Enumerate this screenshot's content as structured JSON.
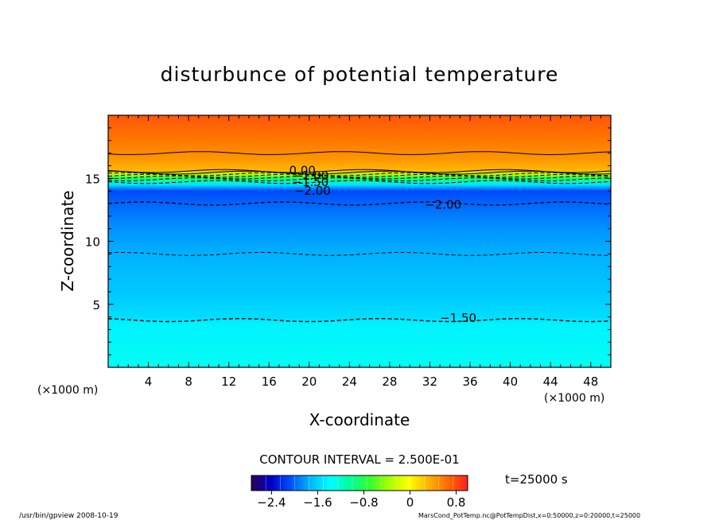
{
  "chart_data": {
    "type": "contour",
    "title": "disturbunce of potential temperature",
    "xlabel": "X-coordinate",
    "ylabel": "Z-coordinate",
    "x_unit": "(×1000 m)",
    "y_unit": "(×1000 m)",
    "xlim": [
      0,
      50
    ],
    "ylim": [
      0,
      20
    ],
    "x_ticks": [
      4,
      8,
      12,
      16,
      20,
      24,
      28,
      32,
      36,
      40,
      44,
      48
    ],
    "y_ticks": [
      5,
      10,
      15
    ],
    "contour_interval_label": "CONTOUR INTERVAL = 2.500E-01",
    "time_label": "t=25000 s",
    "colorbar": {
      "range": [
        -2.75,
        1.0
      ],
      "tick_values": [
        -2.4,
        -1.6,
        -0.8,
        0,
        0.8
      ],
      "tick_labels": [
        "−2.4",
        "−1.6",
        "−0.8",
        "0",
        "0.8"
      ]
    },
    "contour_labels": [
      {
        "text": "0.00",
        "x": 18,
        "z": 15.6
      },
      {
        "text": "−1.00",
        "x": 18.3,
        "z": 15.2
      },
      {
        "text": "−1.50",
        "x": 18.3,
        "z": 14.7
      },
      {
        "text": "−2.00",
        "x": 18.5,
        "z": 14.0
      },
      {
        "text": "−2.00",
        "x": 31.5,
        "z": 12.9
      },
      {
        "text": "−1.50",
        "x": 33,
        "z": 3.9
      }
    ],
    "field_profile": [
      {
        "z": 0,
        "value": -1.35
      },
      {
        "z": 3.5,
        "value": -1.45
      },
      {
        "z": 4.0,
        "value": -1.55
      },
      {
        "z": 6.0,
        "value": -1.65
      },
      {
        "z": 9.0,
        "value": -1.75
      },
      {
        "z": 11.0,
        "value": -1.85
      },
      {
        "z": 13.0,
        "value": -2.0
      },
      {
        "z": 14.0,
        "value": -2.1
      },
      {
        "z": 14.5,
        "value": -1.5
      },
      {
        "z": 15.0,
        "value": -0.9
      },
      {
        "z": 15.3,
        "value": -0.3
      },
      {
        "z": 15.6,
        "value": 0.3
      },
      {
        "z": 16.5,
        "value": 0.45
      },
      {
        "z": 18.0,
        "value": 0.6
      },
      {
        "z": 20.0,
        "value": 0.75
      }
    ],
    "colors": {
      "scale": [
        "#2b0055",
        "#0000c8",
        "#0050ff",
        "#00b8ff",
        "#00ffff",
        "#00ff9c",
        "#30ff30",
        "#a8ff00",
        "#ffff00",
        "#ffb400",
        "#ff6a00",
        "#ff2020"
      ]
    }
  },
  "footer": {
    "left": "/usr/bin/gpview   2008-10-19",
    "right": "MarsCond_PotTemp.nc@PotTempDist,x=0:50000,z=0:20000,t=25000"
  }
}
